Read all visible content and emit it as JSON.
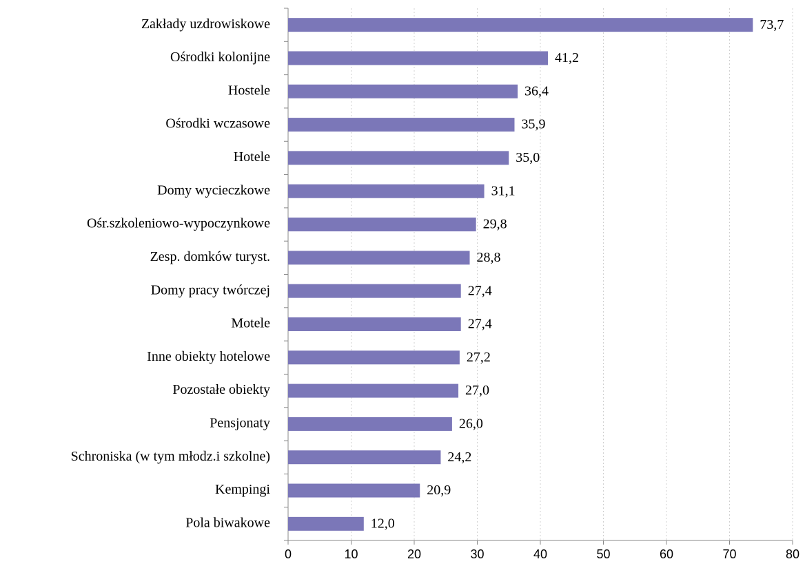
{
  "chart_data": {
    "type": "bar",
    "orientation": "horizontal",
    "categories": [
      "Zakłady uzdrowiskowe",
      "Ośrodki kolonijne",
      "Hostele",
      "Ośrodki wczasowe",
      "Hotele",
      "Domy wycieczkowe",
      "Ośr.szkoleniowo-wypoczynkowe",
      "Zesp. domków turyst.",
      "Domy pracy twórczej",
      "Motele",
      "Inne obiekty hotelowe",
      "Pozostałe obiekty",
      "Pensjonaty",
      "Schroniska (w tym młodz.i szkolne)",
      "Kempingi",
      "Pola biwakowe"
    ],
    "values": [
      73.7,
      41.2,
      36.4,
      35.9,
      35.0,
      31.1,
      29.8,
      28.8,
      27.4,
      27.4,
      27.2,
      27.0,
      26.0,
      24.2,
      20.9,
      12.0
    ],
    "value_labels": [
      "73,7",
      "41,2",
      "36,4",
      "35,9",
      "35,0",
      "31,1",
      "29,8",
      "28,8",
      "27,4",
      "27,4",
      "27,2",
      "27,0",
      "26,0",
      "24,2",
      "20,9",
      "12,0"
    ],
    "color": "#7b77b8",
    "xlim": [
      0,
      80
    ],
    "xticks": [
      0,
      10,
      20,
      30,
      40,
      50,
      60,
      70,
      80
    ],
    "grid": true
  }
}
